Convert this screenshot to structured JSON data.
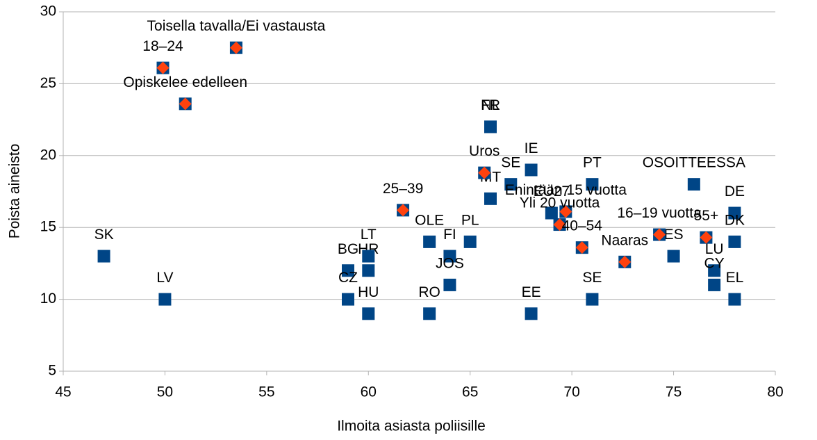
{
  "chart_data": {
    "type": "scatter",
    "x_label": "Ilmoita asiasta poliisille",
    "y_label": "Poista aineisto",
    "xlim": [
      45,
      80
    ],
    "xticks": [
      45,
      50,
      55,
      60,
      65,
      70,
      75,
      80
    ],
    "ylim": [
      5,
      30
    ],
    "yticks": [
      5,
      10,
      15,
      20,
      25,
      30
    ],
    "grid": true,
    "series": [
      {
        "color": "#004586",
        "marker": "square",
        "labels": [
          "SK",
          "LV",
          "BG",
          "HR",
          "LT",
          "CZ",
          "HU",
          "RO",
          "OLE",
          "FI",
          "JOS",
          "PL",
          "FR",
          "NL",
          "MT",
          "SE",
          "IE",
          "EE",
          "EU27",
          "PT",
          "SE",
          "ES",
          "OSOITTEESSA",
          "LU",
          "CY",
          "DE",
          "DK",
          "EL"
        ],
        "x": [
          47,
          50,
          59,
          60,
          60,
          59,
          60,
          63,
          63,
          64,
          64,
          65,
          66,
          66,
          66,
          67,
          68,
          68,
          69,
          71,
          71,
          75,
          76,
          77,
          77,
          78,
          78,
          78
        ],
        "values": [
          13,
          10,
          12,
          12,
          13,
          10,
          9,
          9,
          14,
          13,
          11,
          14,
          22,
          22,
          17,
          18,
          19,
          9,
          16,
          18,
          10,
          13,
          18,
          12,
          11,
          16,
          14,
          10
        ]
      },
      {
        "color": "#ff420e",
        "back_color": "#004586",
        "marker": "diamond",
        "labels": [
          "Toisella tavalla/Ei vastausta",
          "18–24",
          "Opiskelee edelleen",
          "25–39",
          "Uros",
          "Enintään 15 vuotta",
          "Yli 20 vuotta",
          "40–54",
          "Naaras",
          "16–19 vuotta",
          "55+"
        ],
        "x": [
          53.5,
          49.9,
          51.0,
          61.7,
          65.7,
          69.7,
          69.4,
          70.5,
          72.6,
          74.3,
          76.6
        ],
        "values": [
          27.5,
          26.1,
          23.6,
          16.2,
          18.8,
          16.1,
          15.2,
          13.6,
          12.6,
          14.5,
          14.3
        ]
      }
    ]
  }
}
